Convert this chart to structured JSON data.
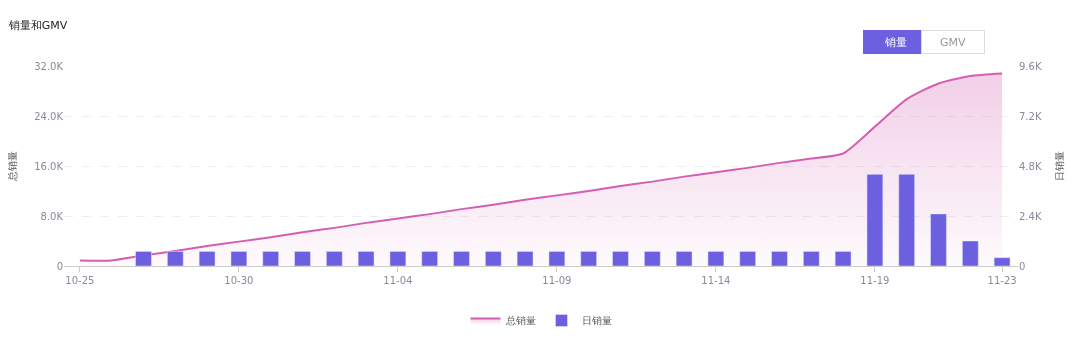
{
  "chart_data": {
    "type": "bar",
    "title": "销量和GMV",
    "ylabel": "总销量",
    "y2label": "日销量",
    "categories": [
      "10-25",
      null,
      null,
      null,
      null,
      "10-30",
      null,
      null,
      null,
      null,
      "11-04",
      null,
      null,
      null,
      null,
      "11-09",
      null,
      null,
      null,
      null,
      "11-14",
      null,
      null,
      null,
      null,
      "11-19",
      null,
      null,
      null,
      "11-23"
    ],
    "series": [
      {
        "name": "总销量",
        "type": "area",
        "color": "#d35fb0",
        "values": [
          900,
          900,
          1700,
          2400,
          3200,
          3900,
          4600,
          5400,
          6100,
          6900,
          7600,
          8300,
          9100,
          9800,
          10600,
          11300,
          12000,
          12800,
          13500,
          14300,
          15000,
          15700,
          16500,
          17200,
          18000,
          22300,
          26700,
          29200,
          30400,
          30800
        ]
      },
      {
        "name": "日销量",
        "axis": "y2",
        "color": "#6c5fe0",
        "values": [
          null,
          null,
          700,
          700,
          700,
          700,
          700,
          700,
          700,
          700,
          700,
          700,
          700,
          700,
          700,
          700,
          700,
          700,
          700,
          700,
          700,
          700,
          700,
          700,
          700,
          4400,
          4400,
          2500,
          1200,
          400
        ]
      }
    ],
    "ylim": [
      0,
      32000
    ],
    "yticks": [
      0,
      {
        "value": 8000,
        "label": "8.0K"
      },
      {
        "value": 16000,
        "label": "16.0K"
      },
      {
        "value": 24000,
        "label": "24.0K"
      },
      {
        "value": 32000,
        "label": "32.0K"
      }
    ],
    "y2lim": [
      0,
      9600
    ],
    "y2ticks": [
      0,
      {
        "value": 2400,
        "label": "2.4K"
      },
      {
        "value": 4800,
        "label": "4.8K"
      },
      {
        "value": 7200,
        "label": "7.2K"
      },
      {
        "value": 9600,
        "label": "9.6K"
      }
    ],
    "grid": "y",
    "legend": "bottom",
    "marker": "none",
    "annotations": [
      "销量",
      "GMV"
    ]
  }
}
